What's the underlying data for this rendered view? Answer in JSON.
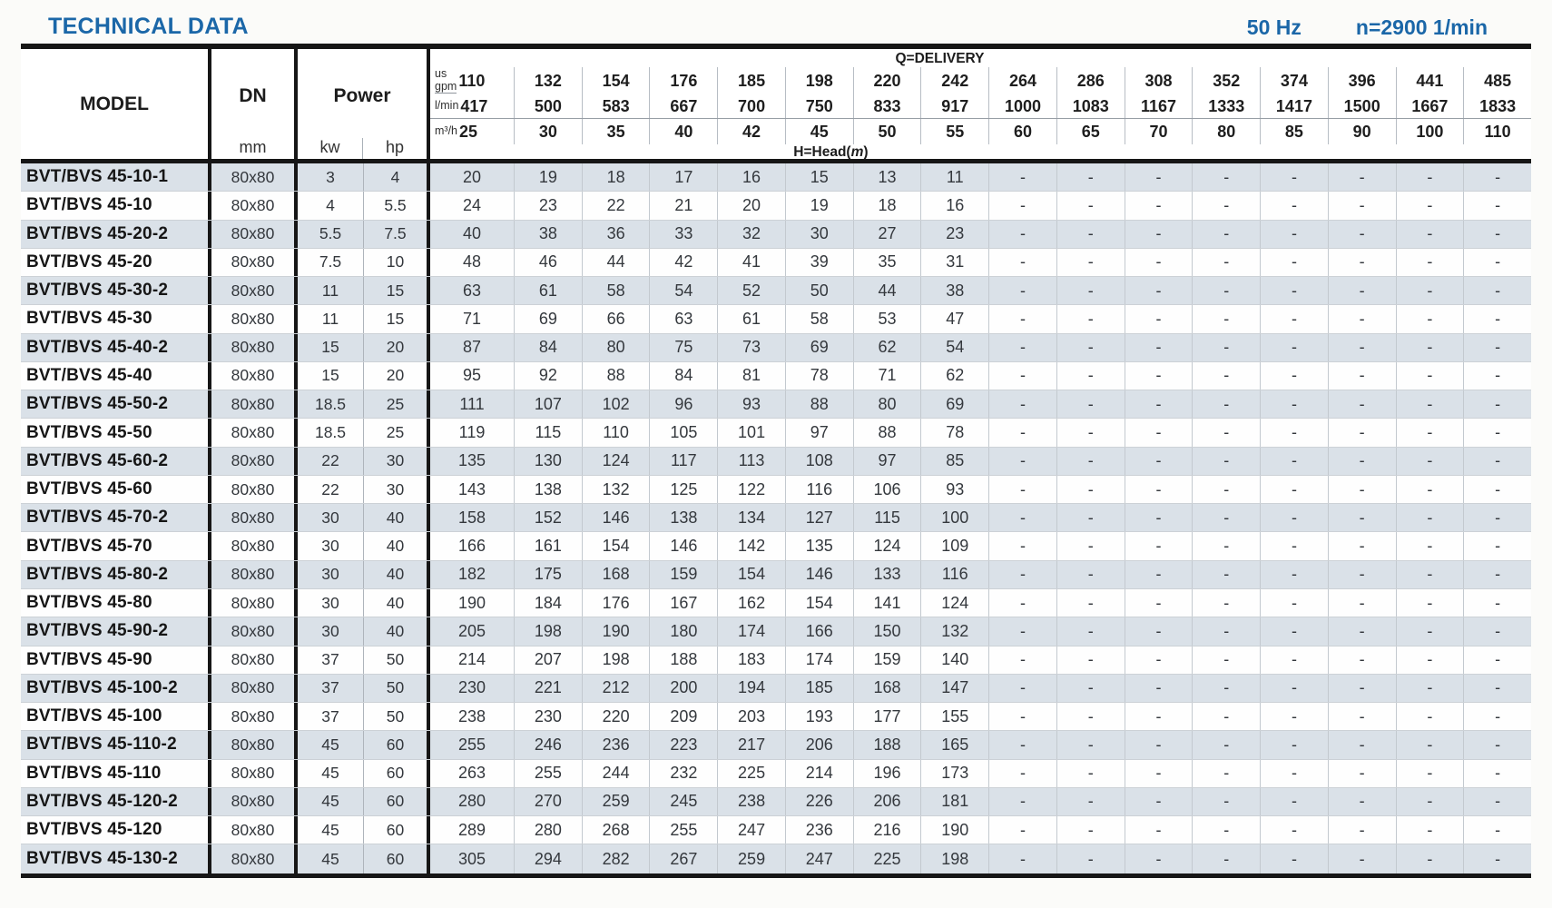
{
  "page": {
    "title": "TECHNICAL DATA",
    "frequency": "50 Hz",
    "speed": "n=2900 1/min",
    "accent_color": "#1b67a8",
    "row_shade_color": "#dae1e8"
  },
  "table": {
    "header": {
      "model_label": "MODEL",
      "dn_label": "DN",
      "dn_unit": "mm",
      "power_label": "Power",
      "power_units": [
        "kw",
        "hp"
      ],
      "delivery_label": "Q=DELIVERY",
      "head_prefix": "H=Head(",
      "head_unit": "m",
      "head_suffix": ")",
      "delivery_rows": [
        {
          "unit_lines": [
            "us",
            "gpm"
          ],
          "values": [
            "110",
            "132",
            "154",
            "176",
            "185",
            "198",
            "220",
            "242",
            "264",
            "286",
            "308",
            "352",
            "374",
            "396",
            "441",
            "485"
          ]
        },
        {
          "unit_lines": [
            "l/min"
          ],
          "values": [
            "417",
            "500",
            "583",
            "667",
            "700",
            "750",
            "833",
            "917",
            "1000",
            "1083",
            "1167",
            "1333",
            "1417",
            "1500",
            "1667",
            "1833"
          ]
        },
        {
          "unit_lines": [
            "m³/h"
          ],
          "values": [
            "25",
            "30",
            "35",
            "40",
            "42",
            "45",
            "50",
            "55",
            "60",
            "65",
            "70",
            "80",
            "85",
            "90",
            "100",
            "110"
          ]
        }
      ]
    },
    "rows": [
      {
        "model": "BVT/BVS 45-10-1",
        "dn": "80x80",
        "kw": "3",
        "hp": "4",
        "head": [
          "20",
          "19",
          "18",
          "17",
          "16",
          "15",
          "13",
          "11",
          "-",
          "-",
          "-",
          "-",
          "-",
          "-",
          "-",
          "-"
        ]
      },
      {
        "model": "BVT/BVS 45-10",
        "dn": "80x80",
        "kw": "4",
        "hp": "5.5",
        "head": [
          "24",
          "23",
          "22",
          "21",
          "20",
          "19",
          "18",
          "16",
          "-",
          "-",
          "-",
          "-",
          "-",
          "-",
          "-",
          "-"
        ]
      },
      {
        "model": "BVT/BVS 45-20-2",
        "dn": "80x80",
        "kw": "5.5",
        "hp": "7.5",
        "head": [
          "40",
          "38",
          "36",
          "33",
          "32",
          "30",
          "27",
          "23",
          "-",
          "-",
          "-",
          "-",
          "-",
          "-",
          "-",
          "-"
        ]
      },
      {
        "model": "BVT/BVS 45-20",
        "dn": "80x80",
        "kw": "7.5",
        "hp": "10",
        "head": [
          "48",
          "46",
          "44",
          "42",
          "41",
          "39",
          "35",
          "31",
          "-",
          "-",
          "-",
          "-",
          "-",
          "-",
          "-",
          "-"
        ]
      },
      {
        "model": "BVT/BVS 45-30-2",
        "dn": "80x80",
        "kw": "11",
        "hp": "15",
        "head": [
          "63",
          "61",
          "58",
          "54",
          "52",
          "50",
          "44",
          "38",
          "-",
          "-",
          "-",
          "-",
          "-",
          "-",
          "-",
          "-"
        ]
      },
      {
        "model": "BVT/BVS 45-30",
        "dn": "80x80",
        "kw": "11",
        "hp": "15",
        "head": [
          "71",
          "69",
          "66",
          "63",
          "61",
          "58",
          "53",
          "47",
          "-",
          "-",
          "-",
          "-",
          "-",
          "-",
          "-",
          "-"
        ]
      },
      {
        "model": "BVT/BVS 45-40-2",
        "dn": "80x80",
        "kw": "15",
        "hp": "20",
        "head": [
          "87",
          "84",
          "80",
          "75",
          "73",
          "69",
          "62",
          "54",
          "-",
          "-",
          "-",
          "-",
          "-",
          "-",
          "-",
          "-"
        ]
      },
      {
        "model": "BVT/BVS 45-40",
        "dn": "80x80",
        "kw": "15",
        "hp": "20",
        "head": [
          "95",
          "92",
          "88",
          "84",
          "81",
          "78",
          "71",
          "62",
          "-",
          "-",
          "-",
          "-",
          "-",
          "-",
          "-",
          "-"
        ]
      },
      {
        "model": "BVT/BVS 45-50-2",
        "dn": "80x80",
        "kw": "18.5",
        "hp": "25",
        "head": [
          "111",
          "107",
          "102",
          "96",
          "93",
          "88",
          "80",
          "69",
          "-",
          "-",
          "-",
          "-",
          "-",
          "-",
          "-",
          "-"
        ]
      },
      {
        "model": "BVT/BVS 45-50",
        "dn": "80x80",
        "kw": "18.5",
        "hp": "25",
        "head": [
          "119",
          "115",
          "110",
          "105",
          "101",
          "97",
          "88",
          "78",
          "-",
          "-",
          "-",
          "-",
          "-",
          "-",
          "-",
          "-"
        ]
      },
      {
        "model": "BVT/BVS 45-60-2",
        "dn": "80x80",
        "kw": "22",
        "hp": "30",
        "head": [
          "135",
          "130",
          "124",
          "117",
          "113",
          "108",
          "97",
          "85",
          "-",
          "-",
          "-",
          "-",
          "-",
          "-",
          "-",
          "-"
        ]
      },
      {
        "model": "BVT/BVS 45-60",
        "dn": "80x80",
        "kw": "22",
        "hp": "30",
        "head": [
          "143",
          "138",
          "132",
          "125",
          "122",
          "116",
          "106",
          "93",
          "-",
          "-",
          "-",
          "-",
          "-",
          "-",
          "-",
          "-"
        ]
      },
      {
        "model": "BVT/BVS 45-70-2",
        "dn": "80x80",
        "kw": "30",
        "hp": "40",
        "head": [
          "158",
          "152",
          "146",
          "138",
          "134",
          "127",
          "115",
          "100",
          "-",
          "-",
          "-",
          "-",
          "-",
          "-",
          "-",
          "-"
        ]
      },
      {
        "model": "BVT/BVS 45-70",
        "dn": "80x80",
        "kw": "30",
        "hp": "40",
        "head": [
          "166",
          "161",
          "154",
          "146",
          "142",
          "135",
          "124",
          "109",
          "-",
          "-",
          "-",
          "-",
          "-",
          "-",
          "-",
          "-"
        ]
      },
      {
        "model": "BVT/BVS 45-80-2",
        "dn": "80x80",
        "kw": "30",
        "hp": "40",
        "head": [
          "182",
          "175",
          "168",
          "159",
          "154",
          "146",
          "133",
          "116",
          "-",
          "-",
          "-",
          "-",
          "-",
          "-",
          "-",
          "-"
        ]
      },
      {
        "model": "BVT/BVS 45-80",
        "dn": "80x80",
        "kw": "30",
        "hp": "40",
        "head": [
          "190",
          "184",
          "176",
          "167",
          "162",
          "154",
          "141",
          "124",
          "-",
          "-",
          "-",
          "-",
          "-",
          "-",
          "-",
          "-"
        ]
      },
      {
        "model": "BVT/BVS 45-90-2",
        "dn": "80x80",
        "kw": "30",
        "hp": "40",
        "head": [
          "205",
          "198",
          "190",
          "180",
          "174",
          "166",
          "150",
          "132",
          "-",
          "-",
          "-",
          "-",
          "-",
          "-",
          "-",
          "-"
        ]
      },
      {
        "model": "BVT/BVS 45-90",
        "dn": "80x80",
        "kw": "37",
        "hp": "50",
        "head": [
          "214",
          "207",
          "198",
          "188",
          "183",
          "174",
          "159",
          "140",
          "-",
          "-",
          "-",
          "-",
          "-",
          "-",
          "-",
          "-"
        ]
      },
      {
        "model": "BVT/BVS 45-100-2",
        "dn": "80x80",
        "kw": "37",
        "hp": "50",
        "head": [
          "230",
          "221",
          "212",
          "200",
          "194",
          "185",
          "168",
          "147",
          "-",
          "-",
          "-",
          "-",
          "-",
          "-",
          "-",
          "-"
        ]
      },
      {
        "model": "BVT/BVS 45-100",
        "dn": "80x80",
        "kw": "37",
        "hp": "50",
        "head": [
          "238",
          "230",
          "220",
          "209",
          "203",
          "193",
          "177",
          "155",
          "-",
          "-",
          "-",
          "-",
          "-",
          "-",
          "-",
          "-"
        ]
      },
      {
        "model": "BVT/BVS 45-110-2",
        "dn": "80x80",
        "kw": "45",
        "hp": "60",
        "head": [
          "255",
          "246",
          "236",
          "223",
          "217",
          "206",
          "188",
          "165",
          "-",
          "-",
          "-",
          "-",
          "-",
          "-",
          "-",
          "-"
        ]
      },
      {
        "model": "BVT/BVS 45-110",
        "dn": "80x80",
        "kw": "45",
        "hp": "60",
        "head": [
          "263",
          "255",
          "244",
          "232",
          "225",
          "214",
          "196",
          "173",
          "-",
          "-",
          "-",
          "-",
          "-",
          "-",
          "-",
          "-"
        ]
      },
      {
        "model": "BVT/BVS 45-120-2",
        "dn": "80x80",
        "kw": "45",
        "hp": "60",
        "head": [
          "280",
          "270",
          "259",
          "245",
          "238",
          "226",
          "206",
          "181",
          "-",
          "-",
          "-",
          "-",
          "-",
          "-",
          "-",
          "-"
        ]
      },
      {
        "model": "BVT/BVS 45-120",
        "dn": "80x80",
        "kw": "45",
        "hp": "60",
        "head": [
          "289",
          "280",
          "268",
          "255",
          "247",
          "236",
          "216",
          "190",
          "-",
          "-",
          "-",
          "-",
          "-",
          "-",
          "-",
          "-"
        ]
      },
      {
        "model": "BVT/BVS 45-130-2",
        "dn": "80x80",
        "kw": "45",
        "hp": "60",
        "head": [
          "305",
          "294",
          "282",
          "267",
          "259",
          "247",
          "225",
          "198",
          "-",
          "-",
          "-",
          "-",
          "-",
          "-",
          "-",
          "-"
        ]
      }
    ]
  }
}
